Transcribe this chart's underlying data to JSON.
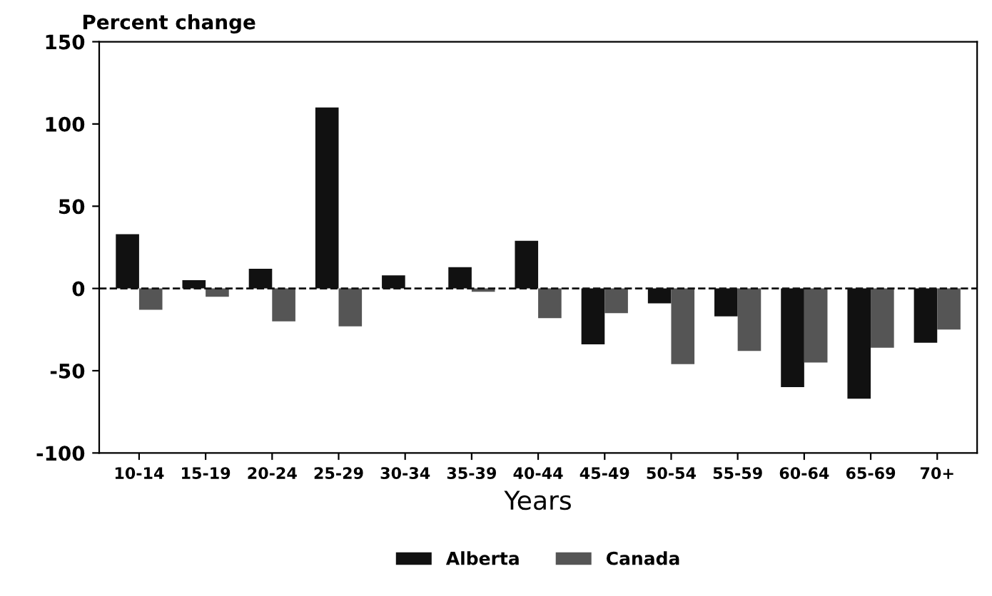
{
  "chart_data": {
    "type": "bar",
    "ylabel": "Percent change",
    "xlabel": "Years",
    "categories": [
      "10-14",
      "15-19",
      "20-24",
      "25-29",
      "30-34",
      "35-39",
      "40-44",
      "45-49",
      "50-54",
      "55-59",
      "60-64",
      "65-69",
      "70+"
    ],
    "series": [
      {
        "name": "Alberta",
        "color": "#111111",
        "values": [
          33,
          5,
          12,
          110,
          8,
          13,
          29,
          -34,
          -9,
          -17,
          -60,
          -67,
          -33
        ]
      },
      {
        "name": "Canada",
        "color": "#555555",
        "values": [
          -13,
          -5,
          -20,
          -23,
          0,
          -2,
          -18,
          -15,
          -46,
          -38,
          -45,
          -36,
          -25
        ]
      }
    ],
    "ylim": [
      -100,
      150
    ],
    "yticks": [
      -100,
      -50,
      0,
      50,
      100,
      150
    ],
    "ref_lines": [
      {
        "axis": "y",
        "value": 0,
        "line_style": "dashed",
        "color": "#111111"
      }
    ],
    "grid": false,
    "legend": "bottom"
  }
}
